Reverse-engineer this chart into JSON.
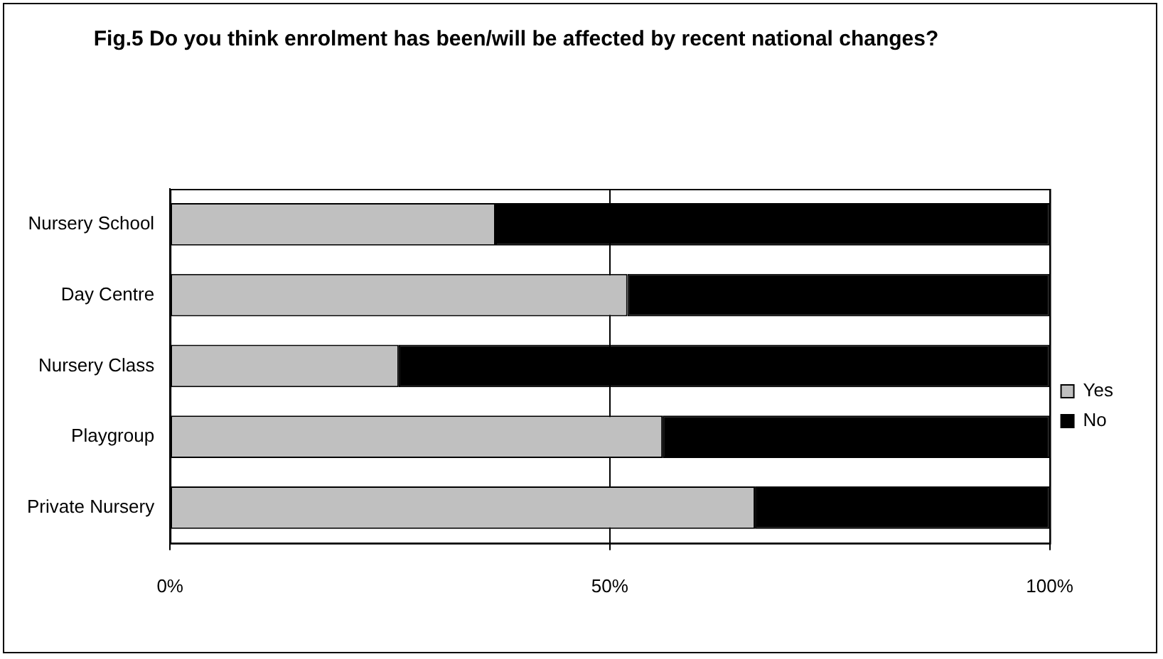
{
  "chart_data": {
    "type": "bar",
    "orientation": "horizontal",
    "stacked": true,
    "title": "Fig.5 Do you think enrolment has been/will be affected by recent national changes?",
    "categories": [
      "Nursery School",
      "Day Centre",
      "Nursery Class",
      "Playgroup",
      "Private Nursery"
    ],
    "series": [
      {
        "name": "Yes",
        "color": "#c0c0c0",
        "values": [
          37,
          52,
          26,
          56,
          66.5
        ]
      },
      {
        "name": "No",
        "color": "#000000",
        "values": [
          63,
          48,
          74,
          44,
          33.5
        ]
      }
    ],
    "xlim": [
      0,
      100
    ],
    "xticks": [
      {
        "value": 0,
        "label": "0%"
      },
      {
        "value": 50,
        "label": "50%"
      },
      {
        "value": 100,
        "label": "100%"
      }
    ],
    "grid": "x",
    "legend": "right"
  }
}
